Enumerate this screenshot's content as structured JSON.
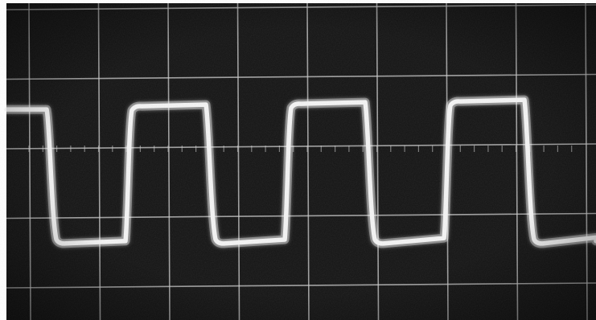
{
  "photo": {
    "subject": "oscilloscope-square-wave-trace",
    "trace_color": "#f4f4f4",
    "screen_color": "#131313",
    "graticule_color": "#cfcfcf",
    "graticule_divisions": {
      "horizontal": 8,
      "vertical": 4
    },
    "waveform": {
      "shape": "square",
      "visible_cycles": 4,
      "duty_cycle": 0.5,
      "high_level_divisions": 2.6,
      "low_level_divisions": 0.65
    }
  }
}
